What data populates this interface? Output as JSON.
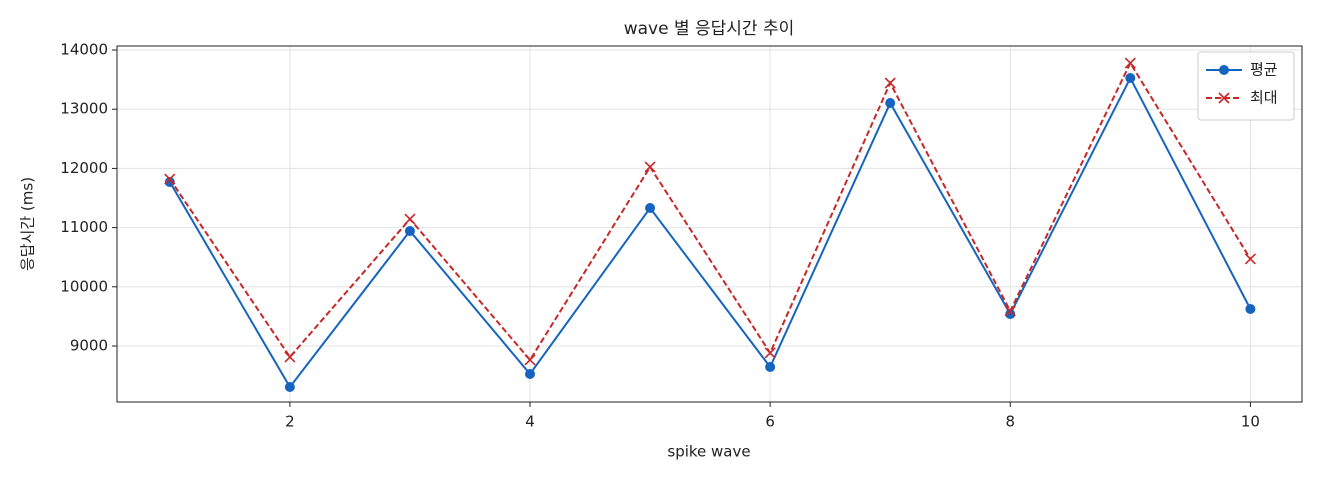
{
  "chart_data": {
    "type": "line",
    "title": "wave 별 응답시간 추이",
    "x_label": "spike wave",
    "y_label": "응답시간 (ms)",
    "x": [
      1,
      2,
      3,
      4,
      5,
      6,
      7,
      8,
      9,
      10
    ],
    "series": [
      {
        "name": "평균",
        "color": "#1565c0",
        "marker": "o",
        "linestyle": "solid",
        "values": [
          11770,
          8307,
          10943,
          8527,
          11331,
          8645,
          13105,
          9540,
          13527,
          9625
        ]
      },
      {
        "name": "최대",
        "color": "#c62828",
        "marker": "x",
        "linestyle": "dashed",
        "values": [
          11821,
          8814,
          11145,
          8764,
          12024,
          8882,
          13443,
          9591,
          13780,
          10470
        ]
      }
    ],
    "xlim": [
      0.56,
      10.43
    ],
    "ylim": [
      8054,
      14068
    ],
    "xticks": [
      2,
      4,
      6,
      8,
      10
    ],
    "yticks": [
      9000,
      10000,
      11000,
      12000,
      13000,
      14000
    ],
    "grid": true,
    "legend": "upper right"
  }
}
